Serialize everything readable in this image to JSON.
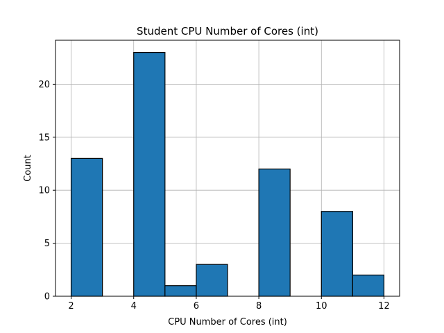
{
  "chart_data": {
    "type": "bar",
    "title": "Student CPU Number of Cores (int)",
    "xlabel": "CPU Number of Cores (int)",
    "ylabel": "Count",
    "bins": [
      {
        "x0": 2,
        "x1": 3,
        "count": 13
      },
      {
        "x0": 3,
        "x1": 4,
        "count": 0
      },
      {
        "x0": 4,
        "x1": 5,
        "count": 23
      },
      {
        "x0": 5,
        "x1": 6,
        "count": 1
      },
      {
        "x0": 6,
        "x1": 7,
        "count": 3
      },
      {
        "x0": 7,
        "x1": 8,
        "count": 0
      },
      {
        "x0": 8,
        "x1": 9,
        "count": 12
      },
      {
        "x0": 9,
        "x1": 10,
        "count": 0
      },
      {
        "x0": 10,
        "x1": 11,
        "count": 8
      },
      {
        "x0": 11,
        "x1": 12,
        "count": 2
      }
    ],
    "xlim": [
      1.5,
      12.5
    ],
    "ylim": [
      0,
      24.15
    ],
    "xticks": [
      2,
      4,
      6,
      8,
      10,
      12
    ],
    "yticks": [
      0,
      5,
      10,
      15,
      20
    ],
    "grid": true,
    "bar_color": "#1f77b4",
    "edge_color": "#000000"
  }
}
